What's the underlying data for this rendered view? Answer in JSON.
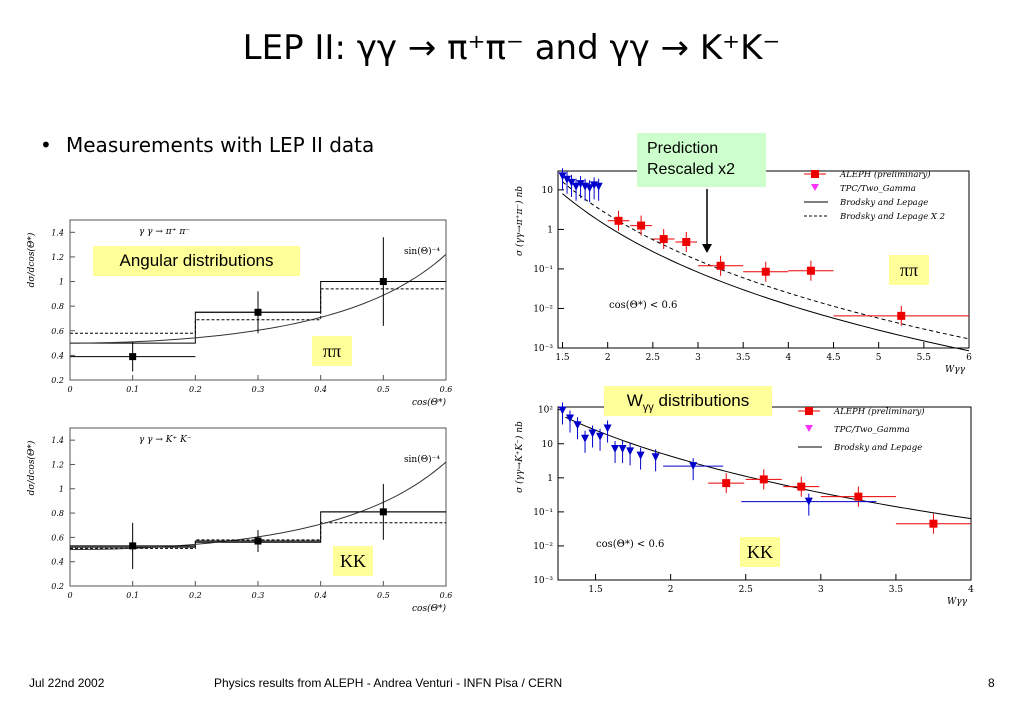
{
  "slide": {
    "title": "LEP II: γγ → π⁺π⁻ and γγ → K⁺K⁻",
    "bullet": "Measurements with LEP II data",
    "angular_label": "Angular distributions",
    "prediction_line1": "Prediction",
    "prediction_line2": "Rescaled x2",
    "w_label": "Wγγ distributions",
    "tag_pipi": "ππ",
    "tag_kk": "KK"
  },
  "footer": {
    "date": "Jul 22nd 2002",
    "center": "Physics results from ALEPH - Andrea Venturi - INFN Pisa / CERN",
    "page": "8"
  },
  "colors": {
    "aleph": "#ee0000",
    "tpc": "#ff33ff",
    "tpc_points": "#0000cc",
    "prediction_box": "#ccffcc",
    "label_box": "#ffff99"
  },
  "chart_data": [
    {
      "id": "pipi-angular",
      "type": "scatter",
      "title": "γ γ → π⁺ π⁻",
      "xlabel": "cos(Θ*)",
      "ylabel": "dσ/dcos(Θ*)",
      "curve_label": "sin(Θ)⁻⁴",
      "xlim": [
        0,
        0.6
      ],
      "ylim": [
        0.2,
        1.5
      ],
      "xticks": [
        "0",
        "0.1",
        "0.2",
        "0.3",
        "0.4",
        "0.5",
        "0.6"
      ],
      "yticks": [
        "0.2",
        "0.4",
        "0.6",
        "0.8",
        "1",
        "1.2",
        "1.4"
      ],
      "points": [
        {
          "x": 0.1,
          "y": 0.39,
          "xerr": 0.1,
          "yerr": 0.12
        },
        {
          "x": 0.3,
          "y": 0.75,
          "xerr": 0.1,
          "yerr": 0.17
        },
        {
          "x": 0.5,
          "y": 1.0,
          "xerr": 0.1,
          "yerr": 0.36
        }
      ],
      "hist_solid": [
        0.5,
        0.75,
        1.0
      ],
      "hist_dashed": [
        0.58,
        0.69,
        0.94
      ],
      "bins": [
        0,
        0.2,
        0.4,
        0.6
      ]
    },
    {
      "id": "kk-angular",
      "type": "scatter",
      "title": "γ γ → K⁺ K⁻",
      "xlabel": "cos(Θ*)",
      "ylabel": "dσ/dcos(Θ*)",
      "curve_label": "sin(Θ)⁻⁴",
      "xlim": [
        0,
        0.6
      ],
      "ylim": [
        0.2,
        1.5
      ],
      "xticks": [
        "0",
        "0.1",
        "0.2",
        "0.3",
        "0.4",
        "0.5",
        "0.6"
      ],
      "yticks": [
        "0.2",
        "0.4",
        "0.6",
        "0.8",
        "1",
        "1.2",
        "1.4"
      ],
      "points": [
        {
          "x": 0.1,
          "y": 0.53,
          "xerr": 0.1,
          "yerr": 0.19
        },
        {
          "x": 0.3,
          "y": 0.57,
          "xerr": 0.1,
          "yerr": 0.09
        },
        {
          "x": 0.5,
          "y": 0.81,
          "xerr": 0.1,
          "yerr": 0.23
        }
      ],
      "hist_solid": [
        0.52,
        0.56,
        0.81
      ],
      "hist_dashed": [
        0.51,
        0.58,
        0.72
      ],
      "bins": [
        0,
        0.2,
        0.4,
        0.6
      ]
    },
    {
      "id": "pipi-w",
      "type": "scatter",
      "xlabel": "Wγγ",
      "ylabel": "σ (γγ→π⁺π⁻) nb",
      "log_y": true,
      "xlim": [
        1.45,
        6
      ],
      "ylim": [
        0.001,
        30
      ],
      "xticks": [
        "1.5",
        "2",
        "2.5",
        "3",
        "3.5",
        "4",
        "4.5",
        "5",
        "5.5",
        "6"
      ],
      "yticks": [
        "10",
        "1",
        "10⁻¹",
        "10⁻²",
        "10⁻³"
      ],
      "annotation": "cos(Θ*) < 0.6",
      "legend": [
        "ALEPH (preliminary)",
        "TPC/Two_Gamma",
        "Brodsky and Lepage",
        "Brodsky and Lepage X 2"
      ],
      "series": [
        {
          "name": "ALEPH (preliminary)",
          "points": [
            {
              "x": 2.12,
              "y": 1.65,
              "xerr": 0.12
            },
            {
              "x": 2.37,
              "y": 1.25,
              "xerr": 0.12
            },
            {
              "x": 2.62,
              "y": 0.57,
              "xerr": 0.12
            },
            {
              "x": 2.87,
              "y": 0.48,
              "xerr": 0.12
            },
            {
              "x": 3.25,
              "y": 0.12,
              "xerr": 0.25
            },
            {
              "x": 3.75,
              "y": 0.085,
              "xerr": 0.25
            },
            {
              "x": 4.25,
              "y": 0.09,
              "xerr": 0.25
            },
            {
              "x": 5.25,
              "y": 0.0065,
              "xerr": 0.75
            }
          ]
        },
        {
          "name": "TPC/Two_Gamma",
          "points": [
            {
              "x": 1.5,
              "y": 22
            },
            {
              "x": 1.55,
              "y": 18
            },
            {
              "x": 1.6,
              "y": 15
            },
            {
              "x": 1.65,
              "y": 12
            },
            {
              "x": 1.7,
              "y": 14
            },
            {
              "x": 1.75,
              "y": 12
            },
            {
              "x": 1.8,
              "y": 11
            },
            {
              "x": 1.85,
              "y": 13
            },
            {
              "x": 1.9,
              "y": 12
            }
          ]
        }
      ]
    },
    {
      "id": "kk-w",
      "type": "scatter",
      "xlabel": "Wγγ",
      "ylabel": "σ (γγ→K⁺K⁻) nb",
      "log_y": true,
      "xlim": [
        1.25,
        4
      ],
      "ylim": [
        0.001,
        120
      ],
      "xticks": [
        "1.5",
        "2",
        "2.5",
        "3",
        "3.5",
        "4"
      ],
      "yticks": [
        "10²",
        "10",
        "1",
        "10⁻¹",
        "10⁻²",
        "10⁻³"
      ],
      "annotation": "cos(Θ*) < 0.6",
      "legend": [
        "ALEPH (preliminary)",
        "TPC/Two_Gamma",
        "Brodsky and Lepage"
      ],
      "series": [
        {
          "name": "ALEPH (preliminary)",
          "points": [
            {
              "x": 2.37,
              "y": 0.7,
              "xerr": 0.12
            },
            {
              "x": 2.62,
              "y": 0.9,
              "xerr": 0.12
            },
            {
              "x": 2.87,
              "y": 0.55,
              "xerr": 0.12
            },
            {
              "x": 3.25,
              "y": 0.28,
              "xerr": 0.25
            },
            {
              "x": 3.75,
              "y": 0.045,
              "xerr": 0.25
            }
          ]
        },
        {
          "name": "TPC/Two_Gamma",
          "points": [
            {
              "x": 1.28,
              "y": 95
            },
            {
              "x": 1.33,
              "y": 55
            },
            {
              "x": 1.38,
              "y": 35
            },
            {
              "x": 1.43,
              "y": 14
            },
            {
              "x": 1.48,
              "y": 20
            },
            {
              "x": 1.53,
              "y": 16
            },
            {
              "x": 1.58,
              "y": 28
            },
            {
              "x": 1.63,
              "y": 7
            },
            {
              "x": 1.68,
              "y": 7
            },
            {
              "x": 1.73,
              "y": 6
            },
            {
              "x": 1.8,
              "y": 4.5
            },
            {
              "x": 1.9,
              "y": 4
            },
            {
              "x": 2.15,
              "y": 2.2,
              "xerr": 0.2
            },
            {
              "x": 2.92,
              "y": 0.2,
              "xerr": 0.45
            }
          ]
        }
      ]
    }
  ]
}
